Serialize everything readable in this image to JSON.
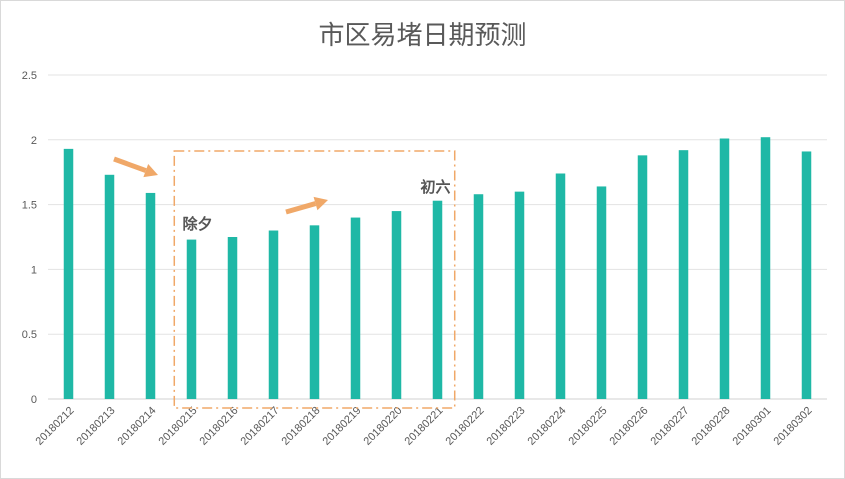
{
  "chart_data": {
    "type": "bar",
    "title": "市区易堵日期预测",
    "xlabel": "",
    "ylabel": "",
    "ylim": [
      0,
      2.5
    ],
    "yticks": [
      "0",
      "0.5",
      "1",
      "1.5",
      "2",
      "2.5"
    ],
    "categories": [
      "20180212",
      "20180213",
      "20180214",
      "20180215",
      "20180216",
      "20180217",
      "20180218",
      "20180219",
      "20180220",
      "20180221",
      "20180222",
      "20180223",
      "20180224",
      "20180225",
      "20180226",
      "20180227",
      "20180228",
      "20180301",
      "20180302"
    ],
    "values": [
      1.93,
      1.73,
      1.59,
      1.23,
      1.25,
      1.3,
      1.34,
      1.4,
      1.45,
      1.53,
      1.58,
      1.6,
      1.74,
      1.64,
      1.88,
      1.92,
      2.01,
      2.02,
      1.91
    ],
    "grid": true,
    "legend": "none",
    "bar_color": "#1fb8a6",
    "annotations": [
      {
        "text": "除夕",
        "category": "20180215"
      },
      {
        "text": "初六",
        "category": "20180221"
      }
    ],
    "highlight": {
      "from": "20180215",
      "to": "20180221",
      "color": "#f0a868"
    },
    "arrows_color": "#f0a868"
  }
}
